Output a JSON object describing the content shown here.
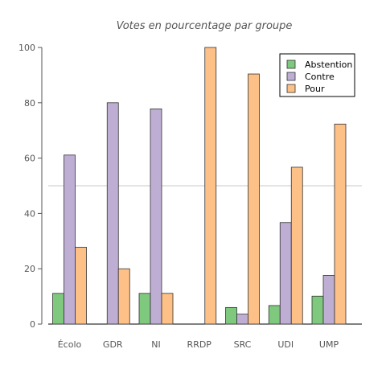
{
  "chart_data": {
    "type": "bar",
    "title": "Votes en pourcentage par groupe",
    "xlabel": "",
    "ylabel": "",
    "categories": [
      "Écolo",
      "GDR",
      "NI",
      "RRDP",
      "SRC",
      "UDI",
      "UMP"
    ],
    "series": [
      {
        "name": "Abstention",
        "color": "#7fc97f",
        "values": [
          11.1,
          0,
          11.1,
          0,
          6.0,
          6.7,
          10.1
        ]
      },
      {
        "name": "Contre",
        "color": "#beaed4",
        "values": [
          61.1,
          80.0,
          77.8,
          0,
          3.6,
          36.7,
          17.6
        ]
      },
      {
        "name": "Pour",
        "color": "#fdc086",
        "values": [
          27.8,
          20.0,
          11.1,
          100.0,
          90.4,
          56.7,
          72.3
        ]
      }
    ],
    "ylim": [
      0,
      100
    ],
    "yticks": [
      "0",
      "20",
      "40",
      "60",
      "80",
      "100"
    ],
    "reference_line": 50,
    "legend_position": "top-right",
    "grid": false
  }
}
